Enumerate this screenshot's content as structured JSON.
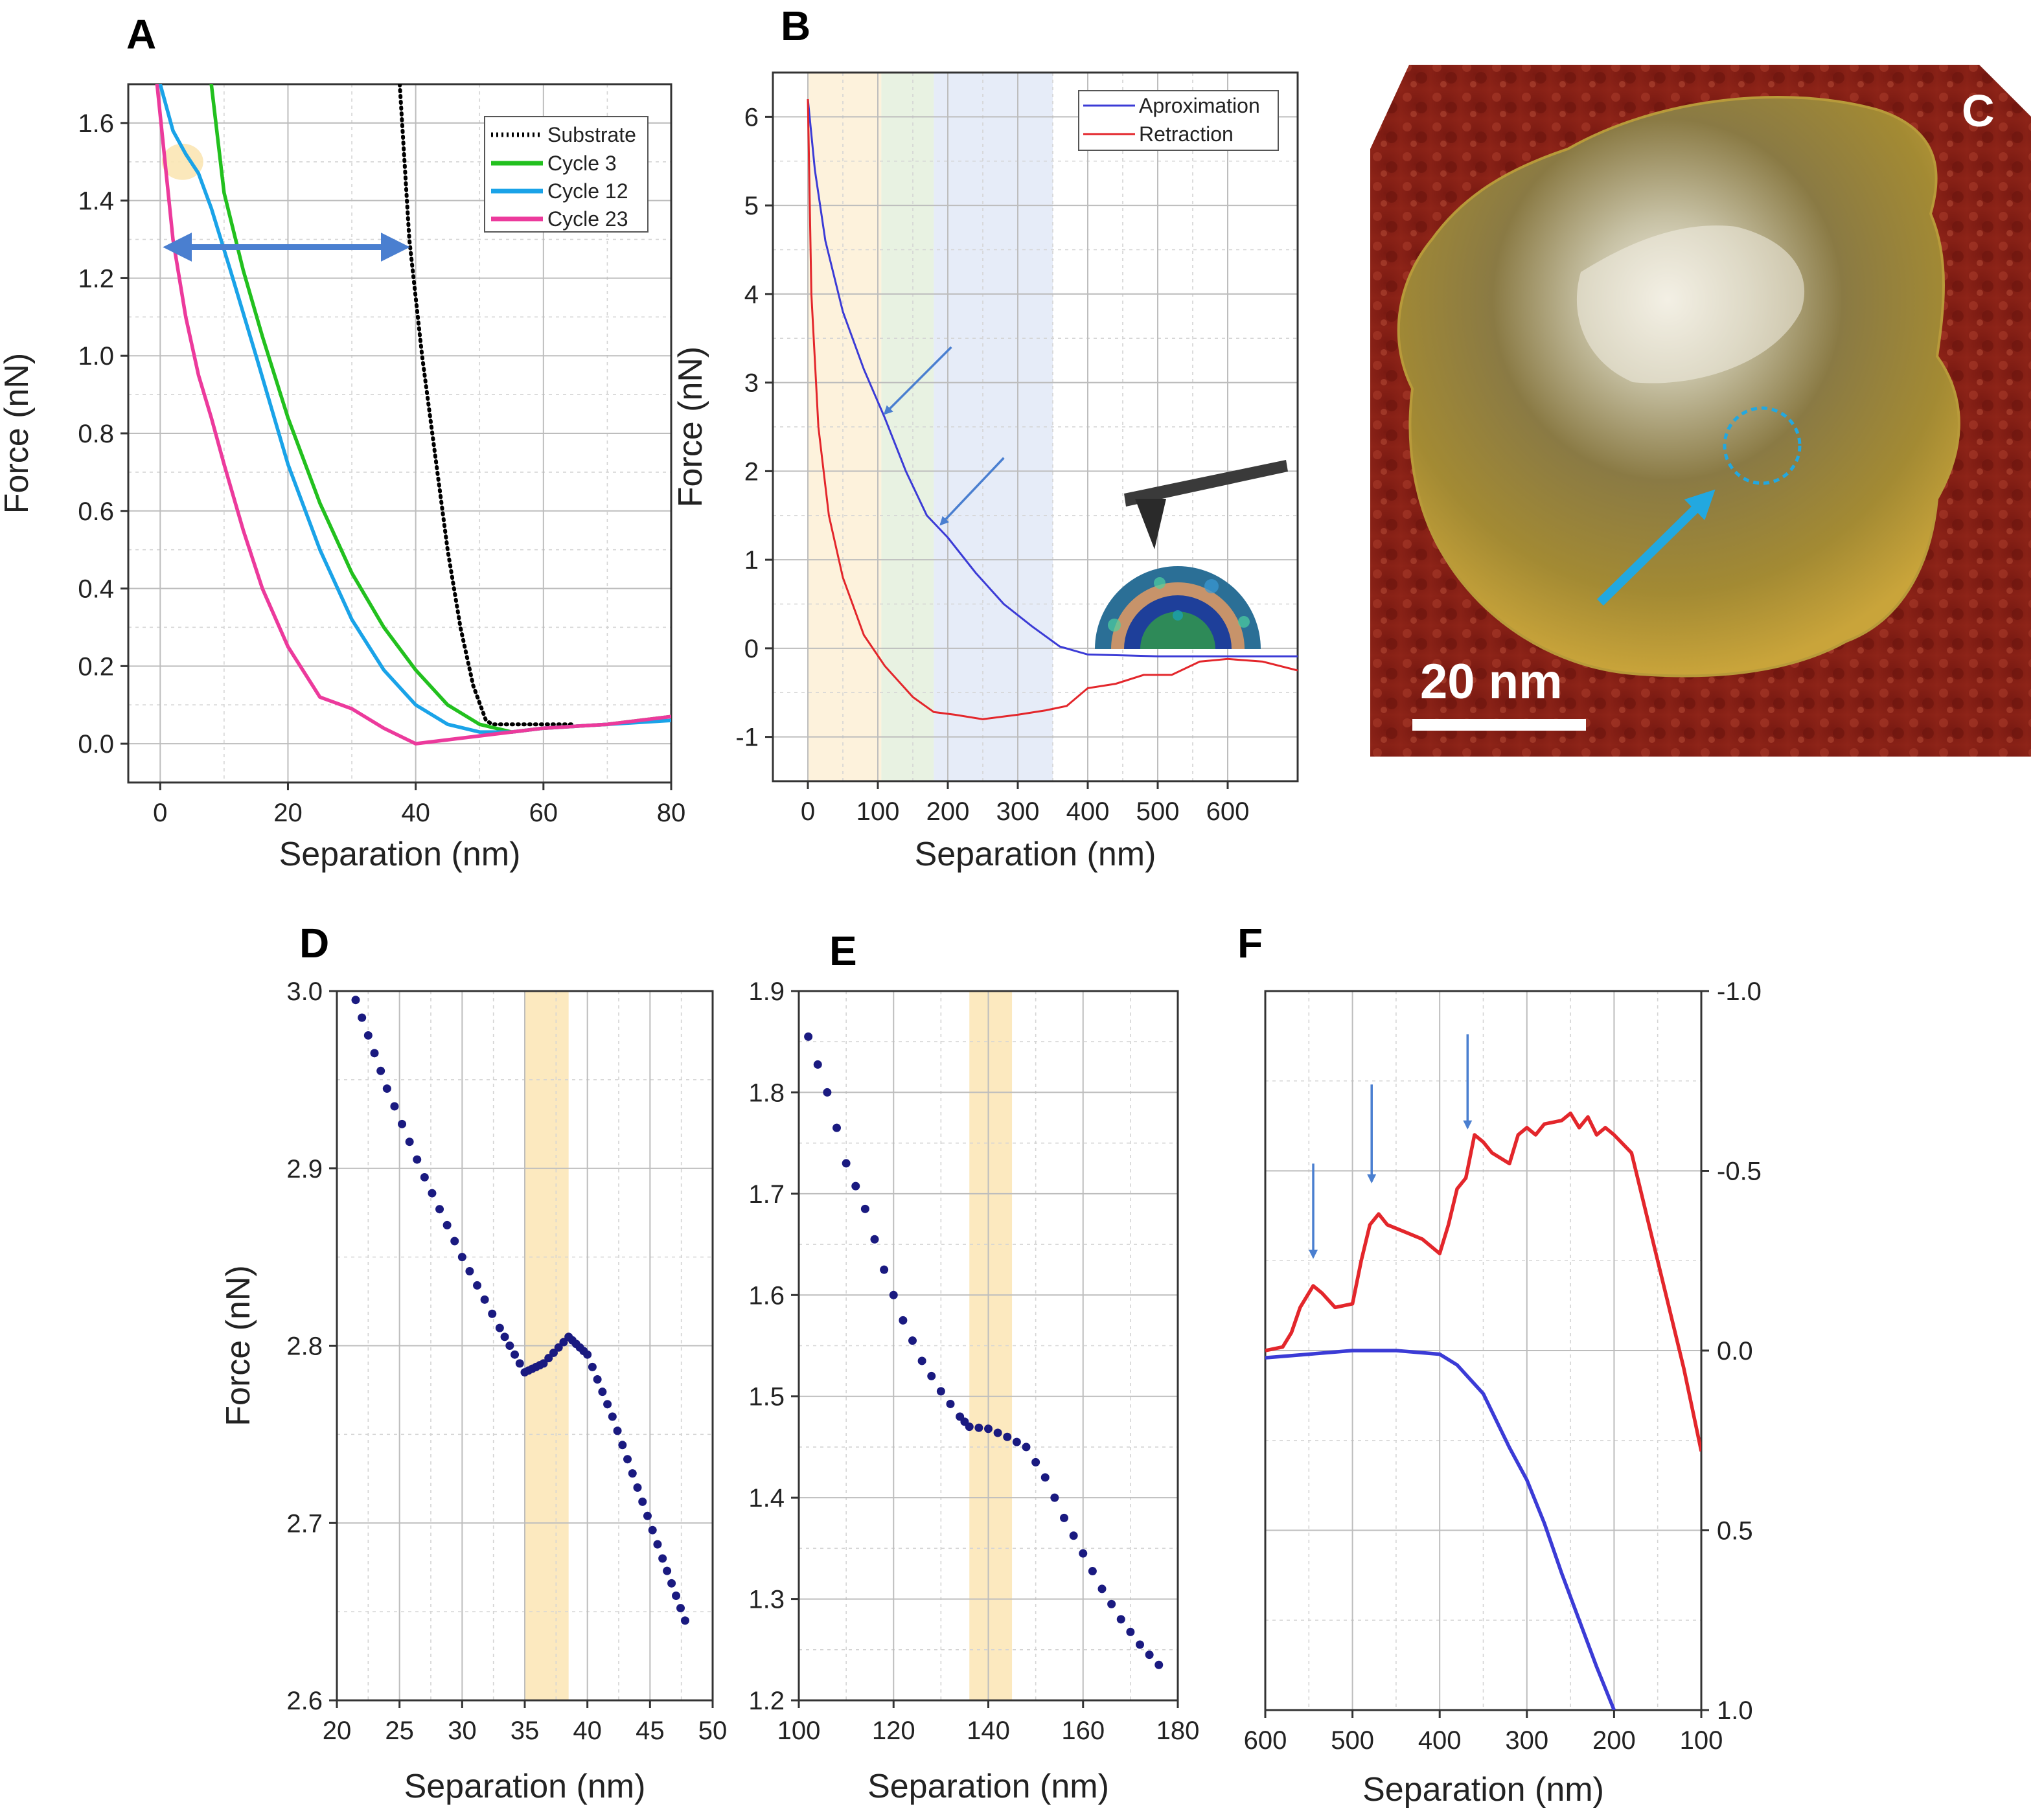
{
  "panel_labels": {
    "A": "A",
    "B": "B",
    "C": "C",
    "D": "D",
    "E": "E",
    "F": "F"
  },
  "panel_c": {
    "scale_bar_label": "20 nm"
  },
  "colors": {
    "substrate": "#000000",
    "cycle3": "#22c01e",
    "cycle12": "#1aa3e8",
    "cycle23": "#ec3a9c",
    "approx": "#3b3bd6",
    "retract": "#e3262b",
    "dots": "#1a1a80",
    "highlight": "#fbe5b4",
    "arrow": "#4a7fd0",
    "c_arrow": "#22a8e0"
  },
  "chart_data": [
    {
      "id": "A",
      "type": "line",
      "xlabel": "Separation (nm)",
      "ylabel": "Force (nN)",
      "xlim": [
        -5,
        80
      ],
      "ylim": [
        -0.1,
        1.7
      ],
      "xticks": [
        0,
        20,
        40,
        60,
        80
      ],
      "yticks": [
        0.0,
        0.2,
        0.4,
        0.6,
        0.8,
        1.0,
        1.2,
        1.4,
        1.6
      ],
      "xtick_labels": [
        "0",
        "20",
        "40",
        "60",
        "80"
      ],
      "ytick_labels": [
        "0.0",
        "0.2",
        "0.4",
        "0.6",
        "0.8",
        "1.0",
        "1.2",
        "1.4",
        "1.6"
      ],
      "series": [
        {
          "name": "Substrate",
          "style": "dotted",
          "x": [
            37.5,
            39,
            41,
            43,
            45,
            47,
            49,
            51,
            52,
            55,
            60,
            65
          ],
          "y": [
            1.7,
            1.3,
            1.0,
            0.75,
            0.5,
            0.3,
            0.15,
            0.06,
            0.05,
            0.05,
            0.05,
            0.05
          ]
        },
        {
          "name": "Cycle 3",
          "style": "solid",
          "x": [
            8,
            10,
            13,
            16,
            20,
            25,
            30,
            35,
            40,
            45,
            50,
            55,
            60,
            70,
            80
          ],
          "y": [
            1.7,
            1.42,
            1.22,
            1.05,
            0.84,
            0.62,
            0.44,
            0.3,
            0.19,
            0.1,
            0.05,
            0.03,
            0.04,
            0.05,
            0.07
          ]
        },
        {
          "name": "Cycle 12",
          "style": "solid",
          "x": [
            0,
            2,
            4,
            6,
            8,
            11,
            15,
            20,
            25,
            30,
            35,
            40,
            45,
            50,
            55,
            60,
            70,
            80
          ],
          "y": [
            1.7,
            1.58,
            1.52,
            1.47,
            1.38,
            1.22,
            1.0,
            0.72,
            0.5,
            0.32,
            0.19,
            0.1,
            0.05,
            0.03,
            0.03,
            0.04,
            0.05,
            0.06
          ]
        },
        {
          "name": "Cycle 23",
          "style": "solid",
          "x": [
            -0.5,
            2,
            4,
            6,
            8,
            10,
            13,
            16,
            20,
            25,
            30,
            35,
            40,
            45,
            50,
            55,
            60,
            70,
            80
          ],
          "y": [
            1.7,
            1.3,
            1.1,
            0.95,
            0.84,
            0.72,
            0.55,
            0.4,
            0.25,
            0.12,
            0.09,
            0.04,
            0.0,
            0.01,
            0.02,
            0.03,
            0.04,
            0.05,
            0.07
          ]
        }
      ],
      "annotation": {
        "type": "double_arrow",
        "x": [
          0.5,
          39
        ],
        "y": 1.28
      },
      "legend": "top-right"
    },
    {
      "id": "B",
      "type": "line",
      "xlabel": "Separation (nm)",
      "ylabel": "Force (nN)",
      "xlim": [
        -50,
        700
      ],
      "ylim": [
        -1.5,
        6.5
      ],
      "xticks": [
        0,
        100,
        200,
        300,
        400,
        500,
        600
      ],
      "yticks": [
        -1,
        0,
        1,
        2,
        3,
        4,
        5,
        6
      ],
      "xtick_labels": [
        "0",
        "100",
        "200",
        "300",
        "400",
        "500",
        "600"
      ],
      "ytick_labels": [
        "-1",
        "0",
        "1",
        "2",
        "3",
        "4",
        "5",
        "6"
      ],
      "shaded_regions": [
        {
          "x": [
            0,
            105
          ],
          "color": "#fdf2dc"
        },
        {
          "x": [
            105,
            180
          ],
          "color": "#e8f2e2"
        },
        {
          "x": [
            180,
            350
          ],
          "color": "#e6ecf8"
        }
      ],
      "series": [
        {
          "name": "Aproximation",
          "x": [
            0,
            10,
            25,
            50,
            80,
            110,
            140,
            170,
            200,
            240,
            280,
            320,
            360,
            400,
            450,
            500,
            600,
            700
          ],
          "y": [
            6.2,
            5.4,
            4.6,
            3.8,
            3.15,
            2.6,
            2.0,
            1.5,
            1.25,
            0.85,
            0.5,
            0.25,
            0.02,
            -0.07,
            -0.08,
            -0.09,
            -0.09,
            -0.09
          ]
        },
        {
          "name": "Retraction",
          "x": [
            0,
            5,
            15,
            30,
            50,
            80,
            110,
            150,
            180,
            210,
            250,
            300,
            340,
            370,
            400,
            440,
            480,
            520,
            560,
            600,
            650,
            700
          ],
          "y": [
            6.2,
            4.0,
            2.5,
            1.5,
            0.8,
            0.15,
            -0.2,
            -0.55,
            -0.72,
            -0.75,
            -0.8,
            -0.75,
            -0.7,
            -0.65,
            -0.45,
            -0.4,
            -0.3,
            -0.3,
            -0.15,
            -0.12,
            -0.15,
            -0.25
          ]
        }
      ],
      "annotations": [
        {
          "type": "arrow",
          "from": [
            205,
            3.4
          ],
          "to": [
            110,
            2.65
          ]
        },
        {
          "type": "arrow",
          "from": [
            280,
            2.15
          ],
          "to": [
            190,
            1.4
          ]
        }
      ],
      "legend": "top-right"
    },
    {
      "id": "D",
      "type": "scatter",
      "xlabel": "Separation (nm)",
      "ylabel": "Force (nN)",
      "xlim": [
        20,
        50
      ],
      "ylim": [
        2.6,
        3.0
      ],
      "xticks": [
        20,
        25,
        30,
        35,
        40,
        45,
        50
      ],
      "yticks": [
        2.6,
        2.7,
        2.8,
        2.9,
        3.0
      ],
      "xtick_labels": [
        "20",
        "25",
        "30",
        "35",
        "40",
        "45",
        "50"
      ],
      "ytick_labels": [
        "2.6",
        "2.7",
        "2.8",
        "2.9",
        "3.0"
      ],
      "highlight": [
        35,
        38.5
      ],
      "x": [
        21.5,
        24,
        27,
        30,
        33,
        35,
        36.5,
        38.5,
        40,
        42,
        44,
        46,
        47.8
      ],
      "y": [
        2.995,
        2.945,
        2.895,
        2.85,
        2.81,
        2.785,
        2.79,
        2.805,
        2.795,
        2.76,
        2.72,
        2.68,
        2.645
      ]
    },
    {
      "id": "E",
      "type": "scatter",
      "xlabel": "Separation (nm)",
      "ylabel": "",
      "xlim": [
        100,
        180
      ],
      "ylim": [
        1.2,
        1.9
      ],
      "xticks": [
        100,
        120,
        140,
        160,
        180
      ],
      "yticks": [
        1.2,
        1.3,
        1.4,
        1.5,
        1.6,
        1.7,
        1.8,
        1.9
      ],
      "xtick_labels": [
        "100",
        "120",
        "140",
        "160",
        "180"
      ],
      "ytick_labels": [
        "1.2",
        "1.3",
        "1.4",
        "1.5",
        "1.6",
        "1.7",
        "1.8",
        "1.9"
      ],
      "highlight": [
        136,
        145
      ],
      "x": [
        102,
        106,
        110,
        114,
        118,
        122,
        126,
        130,
        134,
        136,
        140,
        144,
        148,
        152,
        156,
        160,
        164,
        168,
        172,
        176
      ],
      "y": [
        1.855,
        1.8,
        1.73,
        1.685,
        1.625,
        1.575,
        1.535,
        1.505,
        1.48,
        1.47,
        1.468,
        1.46,
        1.45,
        1.42,
        1.38,
        1.345,
        1.31,
        1.28,
        1.255,
        1.235
      ]
    },
    {
      "id": "F",
      "type": "line",
      "xlabel": "Separation (nm)",
      "ylabel": "",
      "xlim": [
        600,
        100
      ],
      "ylim": [
        1.0,
        -1.0
      ],
      "xticks": [
        600,
        500,
        400,
        300,
        200,
        100
      ],
      "yticks": [
        -1.0,
        -0.5,
        0.0,
        0.5,
        1.0
      ],
      "xtick_labels": [
        "600",
        "500",
        "400",
        "300",
        "200",
        "100"
      ],
      "ytick_labels": [
        "-1.0",
        "-0.5",
        "0.0",
        "0.5",
        "1.0"
      ],
      "series": [
        {
          "name": "Retraction",
          "x": [
            600,
            580,
            570,
            560,
            545,
            535,
            520,
            500,
            490,
            480,
            470,
            460,
            440,
            420,
            400,
            390,
            380,
            370,
            360,
            350,
            340,
            320,
            310,
            300,
            290,
            280,
            260,
            250,
            240,
            230,
            220,
            210,
            200,
            180,
            170,
            160,
            140,
            120,
            100
          ],
          "y": [
            0.0,
            -0.01,
            -0.05,
            -0.12,
            -0.18,
            -0.16,
            -0.12,
            -0.13,
            -0.25,
            -0.35,
            -0.38,
            -0.35,
            -0.33,
            -0.31,
            -0.27,
            -0.35,
            -0.45,
            -0.48,
            -0.6,
            -0.58,
            -0.55,
            -0.52,
            -0.6,
            -0.62,
            -0.6,
            -0.63,
            -0.64,
            -0.66,
            -0.62,
            -0.65,
            -0.6,
            -0.62,
            -0.6,
            -0.55,
            -0.45,
            -0.35,
            -0.15,
            0.05,
            0.28
          ]
        },
        {
          "name": "Aproximation",
          "x": [
            600,
            550,
            500,
            450,
            400,
            380,
            350,
            320,
            300,
            280,
            260,
            240,
            220,
            200
          ],
          "y": [
            0.02,
            0.01,
            0.0,
            0.0,
            0.01,
            0.04,
            0.12,
            0.27,
            0.36,
            0.48,
            0.62,
            0.75,
            0.88,
            1.0
          ]
        }
      ],
      "annotations": [
        {
          "type": "arrow",
          "x": 545,
          "from_y": -0.52,
          "to_y": -0.26
        },
        {
          "type": "arrow",
          "x": 478,
          "from_y": -0.74,
          "to_y": -0.47
        },
        {
          "type": "arrow",
          "x": 368,
          "from_y": -0.88,
          "to_y": -0.62
        }
      ]
    }
  ]
}
